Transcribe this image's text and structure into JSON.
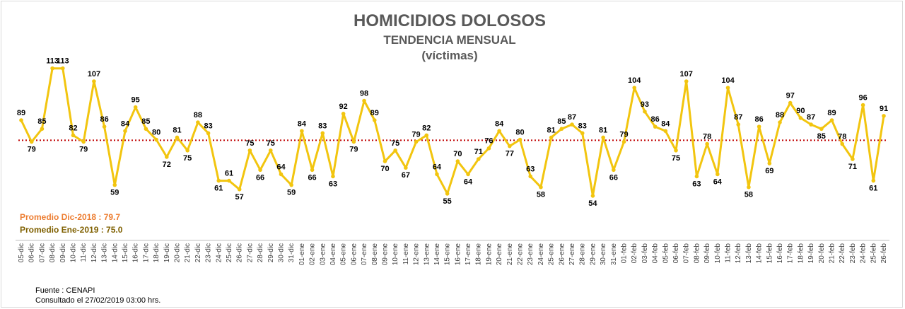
{
  "chart_data": {
    "type": "line",
    "title": "HOMICIDIOS DOLOSOS",
    "subtitle": "TENDENCIA MENSUAL",
    "subtitle2": "(víctimas)",
    "xlabel": "",
    "ylabel": "",
    "categories": [
      "05-dic",
      "06-dic",
      "07-dic",
      "08-dic",
      "09-dic",
      "10-dic",
      "11-dic",
      "12-dic",
      "13-dic",
      "14-dic",
      "15-dic",
      "16-dic",
      "17-dic",
      "18-dic",
      "19-dic",
      "20-dic",
      "21-dic",
      "22-dic",
      "23-dic",
      "24-dic",
      "25-dic",
      "26-dic",
      "27-dic",
      "28-dic",
      "29-dic",
      "30-dic",
      "31-dic",
      "01-ene",
      "02-ene",
      "03-ene",
      "04-ene",
      "05-ene",
      "06-ene",
      "07-ene",
      "08-ene",
      "09-ene",
      "10-ene",
      "11-ene",
      "12-ene",
      "13-ene",
      "14-ene",
      "15-ene",
      "16-ene",
      "17-ene",
      "18-ene",
      "19-ene",
      "20-ene",
      "21-ene",
      "22-ene",
      "23-ene",
      "24-ene",
      "25-ene",
      "26-ene",
      "27-ene",
      "28-ene",
      "29-ene",
      "30-ene",
      "31-ene",
      "01-feb",
      "02-feb",
      "03-feb",
      "04-feb",
      "05-feb",
      "06-feb",
      "07-feb",
      "08-feb",
      "09-feb",
      "10-feb",
      "11-feb",
      "12-feb",
      "13-feb",
      "14-feb",
      "15-feb",
      "16-feb",
      "17-feb",
      "18-feb",
      "19-feb",
      "20-feb",
      "21-feb",
      "22-feb",
      "23-feb",
      "24-feb",
      "25-feb",
      "26-feb"
    ],
    "series": [
      {
        "values": [
          89,
          79,
          85,
          113,
          113,
          82,
          79,
          107,
          86,
          59,
          84,
          95,
          85,
          80,
          72,
          81,
          75,
          88,
          83,
          61,
          61,
          57,
          75,
          66,
          75,
          64,
          59,
          84,
          66,
          83,
          63,
          92,
          79,
          98,
          89,
          70,
          75,
          67,
          79,
          82,
          64,
          55,
          70,
          64,
          71,
          76,
          84,
          77,
          80,
          63,
          58,
          81,
          85,
          87,
          83,
          54,
          81,
          66,
          79,
          104,
          93,
          86,
          84,
          75,
          107,
          63,
          78,
          64,
          104,
          87,
          58,
          86,
          69,
          88,
          97,
          90,
          87,
          85,
          89,
          78,
          71,
          96,
          61,
          91
        ],
        "color": "#f2c50f"
      }
    ],
    "reference_line": {
      "value": 79.7,
      "color": "#c00000",
      "style": "dotted"
    },
    "ylim": [
      35,
      125
    ],
    "grid": false,
    "legend": "none"
  },
  "annotations": {
    "avg_dic": "Promedio Dic-2018  : 79.7",
    "avg_ene": "Promedio Ene-2019 : 75.0"
  },
  "footer": {
    "source": "Fuente : CENAPI",
    "consulted": "Consultado el 27/02/2019  03:00 hrs."
  }
}
